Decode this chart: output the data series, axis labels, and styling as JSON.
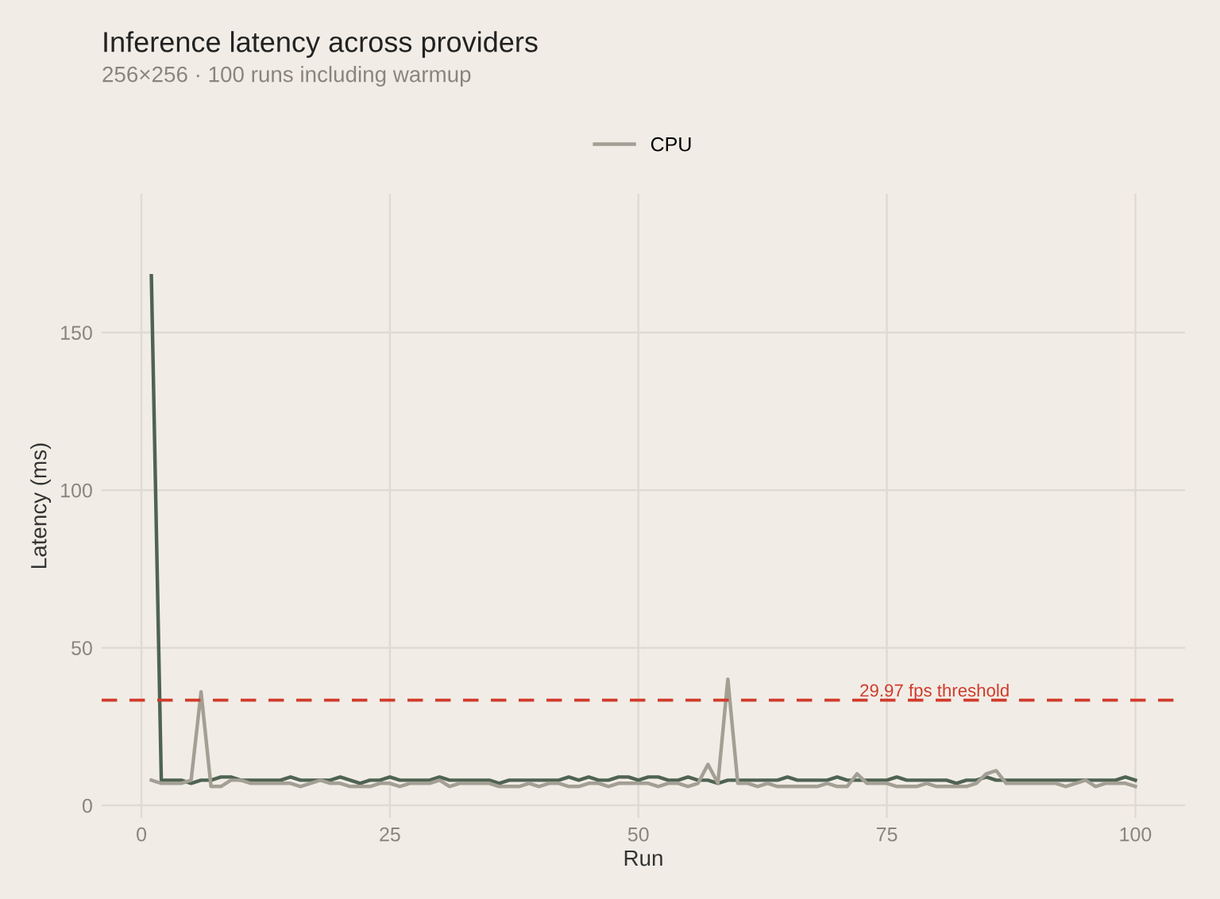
{
  "chart_data": {
    "type": "line",
    "title": "Inference latency across providers",
    "subtitle": "256×256 · 100 runs including warmup",
    "xlabel": "Run",
    "ylabel": "Latency (ms)",
    "x": [
      1,
      2,
      3,
      4,
      5,
      6,
      7,
      8,
      9,
      10,
      11,
      12,
      13,
      14,
      15,
      16,
      17,
      18,
      19,
      20,
      21,
      22,
      23,
      24,
      25,
      26,
      27,
      28,
      29,
      30,
      31,
      32,
      33,
      34,
      35,
      36,
      37,
      38,
      39,
      40,
      41,
      42,
      43,
      44,
      45,
      46,
      47,
      48,
      49,
      50,
      51,
      52,
      53,
      54,
      55,
      56,
      57,
      58,
      59,
      60,
      61,
      62,
      63,
      64,
      65,
      66,
      67,
      68,
      69,
      70,
      71,
      72,
      73,
      74,
      75,
      76,
      77,
      78,
      79,
      80,
      81,
      82,
      83,
      84,
      85,
      86,
      87,
      88,
      89,
      90,
      91,
      92,
      93,
      94,
      95,
      96,
      97,
      98,
      99,
      100
    ],
    "series": [
      {
        "color": "#4f6352",
        "values": [
          168,
          8,
          8,
          8,
          7,
          8,
          8,
          9,
          9,
          8,
          8,
          8,
          8,
          8,
          9,
          8,
          8,
          8,
          8,
          9,
          8,
          7,
          8,
          8,
          9,
          8,
          8,
          8,
          8,
          9,
          8,
          8,
          8,
          8,
          8,
          7,
          8,
          8,
          8,
          8,
          8,
          8,
          9,
          8,
          9,
          8,
          8,
          9,
          9,
          8,
          9,
          9,
          8,
          8,
          9,
          8,
          8,
          7,
          8,
          8,
          8,
          8,
          8,
          8,
          9,
          8,
          8,
          8,
          8,
          9,
          8,
          8,
          8,
          8,
          8,
          9,
          8,
          8,
          8,
          8,
          8,
          7,
          8,
          8,
          9,
          8,
          8,
          8,
          8,
          8,
          8,
          8,
          8,
          8,
          8,
          8,
          8,
          8,
          9,
          8
        ]
      },
      {
        "name": "CPU",
        "color": "#a39f94",
        "values": [
          8,
          7,
          7,
          7,
          8,
          36,
          6,
          6,
          8,
          8,
          7,
          7,
          7,
          7,
          7,
          6,
          7,
          8,
          7,
          7,
          6,
          6,
          6,
          7,
          7,
          6,
          7,
          7,
          7,
          8,
          6,
          7,
          7,
          7,
          7,
          6,
          6,
          6,
          7,
          6,
          7,
          7,
          6,
          6,
          7,
          7,
          6,
          7,
          7,
          7,
          7,
          6,
          7,
          7,
          6,
          7,
          13,
          7,
          40,
          7,
          7,
          6,
          7,
          6,
          6,
          6,
          6,
          6,
          7,
          6,
          6,
          10,
          7,
          7,
          7,
          6,
          6,
          6,
          7,
          6,
          6,
          6,
          6,
          7,
          10,
          11,
          7,
          7,
          7,
          7,
          7,
          7,
          6,
          7,
          8,
          6,
          7,
          7,
          7,
          6
        ]
      }
    ],
    "xlim": [
      -4,
      105
    ],
    "ylim": [
      -4,
      194
    ],
    "xticks": [
      0,
      25,
      50,
      75,
      100
    ],
    "yticks": [
      0,
      50,
      100,
      150
    ],
    "ref_lines": [
      {
        "axis": "y",
        "value": 33.37,
        "label": "29.97 fps threshold",
        "color": "#d13b2c",
        "line_style": "dashed"
      }
    ],
    "grid": true,
    "legend": "top",
    "line_style": "solid",
    "marker": "none"
  }
}
